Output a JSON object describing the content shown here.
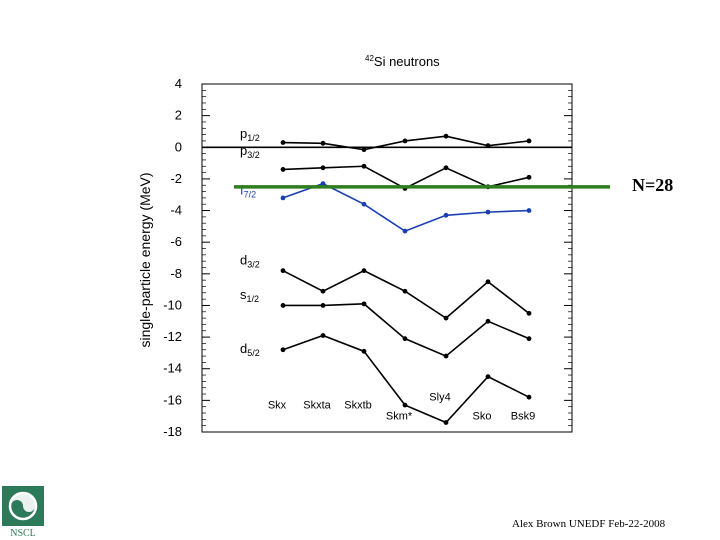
{
  "chart_data": {
    "type": "line",
    "title_sup": "42",
    "title": "Si neutrons",
    "ylabel": "single-particle energy (MeV)",
    "ylim": [
      -18,
      4
    ],
    "yticks": [
      4,
      2,
      0,
      -2,
      -4,
      -6,
      -8,
      -10,
      -12,
      -14,
      -16,
      -18
    ],
    "categories": [
      "Skx",
      "Skxta",
      "Skxtb",
      "Skm*",
      "Sly4",
      "Sko",
      "Bsk9"
    ],
    "zero_line": 0,
    "series": [
      {
        "name": "p1/2",
        "main": "p",
        "sub": "1/2",
        "color": "#000000",
        "label_y": 0.6,
        "values": [
          0.3,
          0.25,
          -0.15,
          0.4,
          0.7,
          0.1,
          0.4
        ]
      },
      {
        "name": "p3/2",
        "main": "p",
        "sub": "3/2",
        "color": "#000000",
        "label_y": -0.5,
        "values": [
          -1.4,
          -1.3,
          -1.2,
          -2.6,
          -1.3,
          -2.5,
          -1.9
        ]
      },
      {
        "name": "f7/2",
        "main": "f",
        "sub": "7/2",
        "color": "#1a3fb3",
        "label_y": -3.0,
        "values": [
          -3.2,
          -2.3,
          -3.6,
          -5.3,
          -4.3,
          -4.1,
          -4.0
        ]
      },
      {
        "name": "d3/2",
        "main": "d",
        "sub": "3/2",
        "color": "#000000",
        "label_y": -7.4,
        "values": [
          -7.8,
          -9.1,
          -7.8,
          -9.1,
          -10.8,
          -8.5,
          -10.5
        ]
      },
      {
        "name": "s1/2",
        "main": "s",
        "sub": "1/2",
        "color": "#000000",
        "label_y": -9.6,
        "values": [
          -10.0,
          -10.0,
          -9.9,
          -12.1,
          -13.2,
          -11.0,
          -12.1
        ]
      },
      {
        "name": "d5/2",
        "main": "d",
        "sub": "5/2",
        "color": "#000000",
        "label_y": -13.0,
        "values": [
          -12.8,
          -11.9,
          -12.9,
          -16.3,
          -17.4,
          -14.5,
          -15.8
        ]
      }
    ],
    "category_label_y": [
      -16.5,
      -16.5,
      -16.5,
      -17.2,
      -16.0,
      -17.2,
      -17.2
    ],
    "annotation": {
      "text": "N=28",
      "y": -2.5,
      "color": "#2e7d1e"
    }
  },
  "footer": "Alex Brown UNEDF Feb-22-2008",
  "logo_text": "NSCL"
}
